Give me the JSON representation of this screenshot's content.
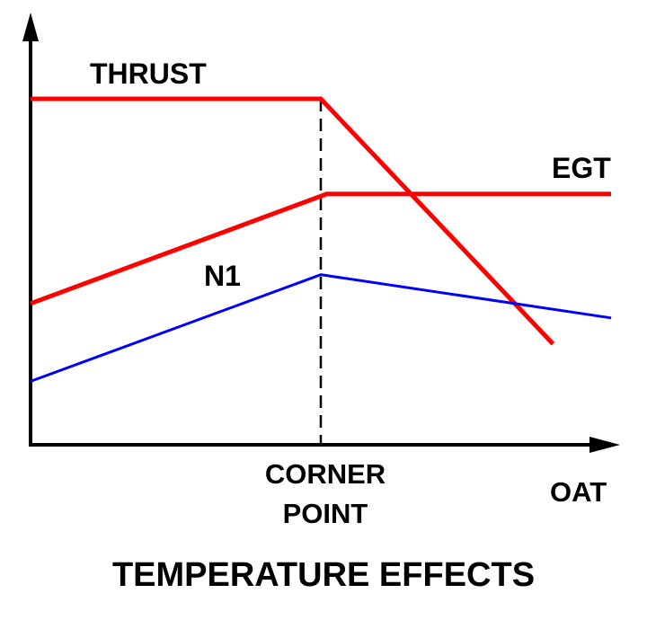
{
  "chart_data": {
    "type": "line",
    "title": "TEMPERATURE EFFECTS",
    "xlabel": "OAT",
    "ylabel": "",
    "annotation": {
      "lines": [
        "CORNER",
        "POINT"
      ],
      "x": 10
    },
    "grid": false,
    "xlim": [
      0,
      20
    ],
    "ylim": [
      0,
      12
    ],
    "series": [
      {
        "name": "THRUST",
        "color": "#ff0000",
        "x": [
          0,
          10,
          18
        ],
        "y": [
          12,
          12,
          3.5
        ]
      },
      {
        "name": "EGT",
        "color": "#ff0000",
        "x": [
          0,
          10.2,
          20
        ],
        "y": [
          4.9,
          8.7,
          8.7
        ]
      },
      {
        "name": "N1",
        "color": "#0000ff",
        "x": [
          0,
          10,
          20
        ],
        "y": [
          2.2,
          5.9,
          4.4
        ]
      }
    ]
  }
}
